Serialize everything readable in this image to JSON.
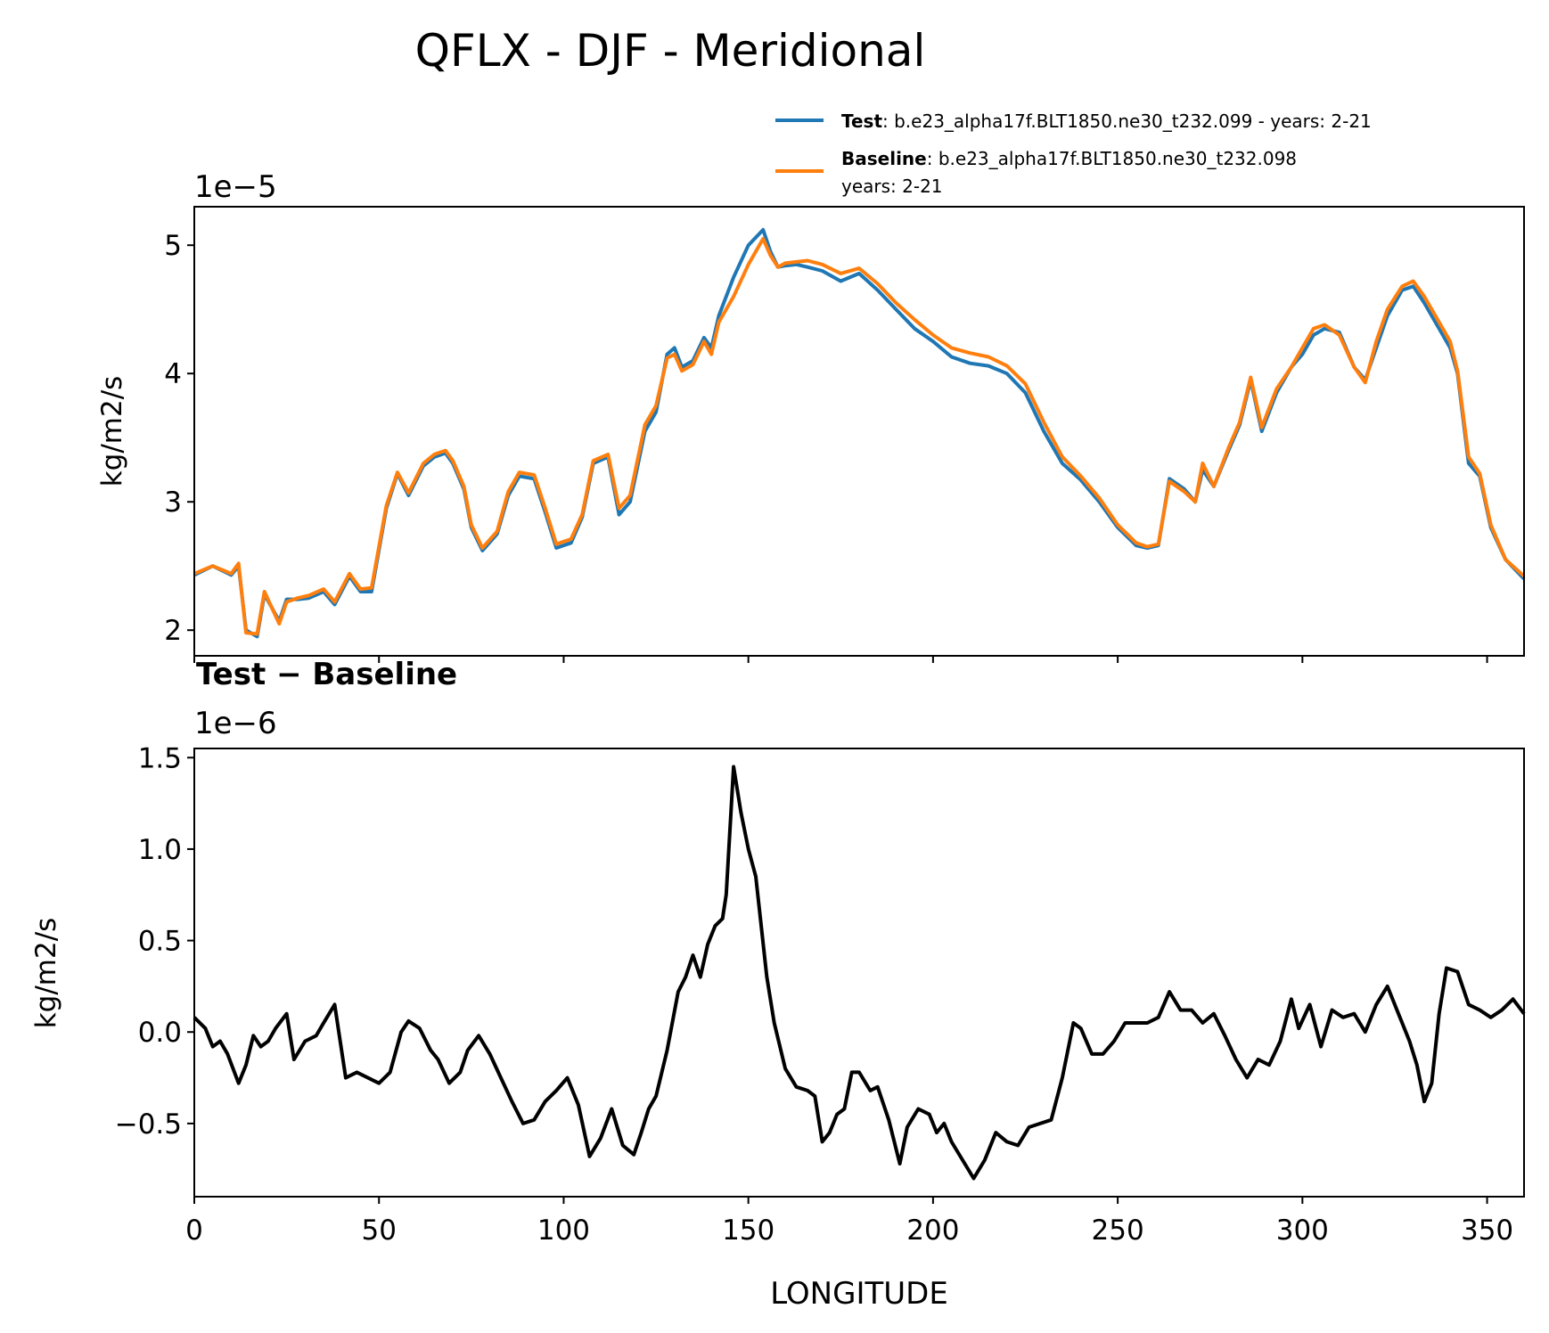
{
  "title": "QFLX - DJF - Meridional",
  "chart_data": [
    {
      "type": "line",
      "panel": "top",
      "ylabel": "kg/m2/s",
      "y_exponent": "1e−5",
      "xlim": [
        0,
        360
      ],
      "ylim": [
        1.8,
        5.3
      ],
      "yticks": [
        2,
        3,
        4,
        5
      ],
      "ytick_labels": [
        "2",
        "3",
        "4",
        "5"
      ],
      "legend": {
        "position": "top-right",
        "entries": [
          {
            "series": "Test",
            "label_bold": "Test",
            "label_rest": ": b.e23_alpha17f.BLT1850.ne30_t232.099 - years: 2-21",
            "line2": ""
          },
          {
            "series": "Baseline",
            "label_bold": "Baseline",
            "label_rest": ": b.e23_alpha17f.BLT1850.ne30_t232.098",
            "line2": "years: 2-21"
          }
        ]
      },
      "x": [
        0,
        5,
        10,
        12,
        14,
        17,
        19,
        23,
        25,
        28,
        31,
        35,
        38,
        42,
        45,
        48,
        52,
        55,
        58,
        62,
        65,
        68,
        70,
        73,
        75,
        78,
        82,
        85,
        88,
        92,
        95,
        98,
        102,
        105,
        108,
        112,
        115,
        118,
        122,
        125,
        128,
        130,
        132,
        135,
        138,
        140,
        142,
        146,
        150,
        154,
        156,
        158,
        160,
        163,
        166,
        170,
        175,
        180,
        185,
        190,
        195,
        200,
        205,
        210,
        215,
        220,
        225,
        230,
        235,
        240,
        245,
        250,
        255,
        258,
        261,
        264,
        268,
        271,
        273,
        276,
        280,
        283,
        286,
        289,
        293,
        297,
        300,
        303,
        306,
        310,
        314,
        317,
        320,
        323,
        327,
        330,
        333,
        337,
        340,
        342,
        345,
        348,
        351,
        355,
        360
      ],
      "series": [
        {
          "name": "Test",
          "color": "#1f77b4",
          "values": [
            2.43,
            2.5,
            2.43,
            2.5,
            2.0,
            1.95,
            2.28,
            2.07,
            2.24,
            2.24,
            2.25,
            2.3,
            2.2,
            2.42,
            2.3,
            2.3,
            2.95,
            3.22,
            3.05,
            3.28,
            3.35,
            3.38,
            3.3,
            3.1,
            2.8,
            2.62,
            2.75,
            3.05,
            3.2,
            3.18,
            2.92,
            2.64,
            2.68,
            2.88,
            3.3,
            3.35,
            2.9,
            3.0,
            3.55,
            3.7,
            4.15,
            4.2,
            4.05,
            4.1,
            4.28,
            4.2,
            4.45,
            4.75,
            5.0,
            5.12,
            4.95,
            4.83,
            4.84,
            4.85,
            4.83,
            4.8,
            4.72,
            4.78,
            4.65,
            4.5,
            4.35,
            4.25,
            4.13,
            4.08,
            4.06,
            4.0,
            3.85,
            3.55,
            3.3,
            3.17,
            3.0,
            2.8,
            2.66,
            2.64,
            2.66,
            3.18,
            3.1,
            3.0,
            3.25,
            3.12,
            3.4,
            3.6,
            3.95,
            3.55,
            3.85,
            4.05,
            4.15,
            4.3,
            4.35,
            4.32,
            4.05,
            3.95,
            4.2,
            4.45,
            4.65,
            4.68,
            4.55,
            4.35,
            4.2,
            4.0,
            3.3,
            3.2,
            2.8,
            2.55,
            2.4
          ]
        },
        {
          "name": "Baseline",
          "color": "#ff7f0e",
          "values": [
            2.44,
            2.5,
            2.44,
            2.52,
            1.98,
            1.97,
            2.3,
            2.05,
            2.22,
            2.25,
            2.27,
            2.32,
            2.22,
            2.44,
            2.32,
            2.33,
            2.97,
            3.23,
            3.07,
            3.3,
            3.37,
            3.4,
            3.32,
            3.12,
            2.82,
            2.64,
            2.77,
            3.08,
            3.23,
            3.21,
            2.95,
            2.67,
            2.71,
            2.9,
            3.32,
            3.37,
            2.95,
            3.05,
            3.6,
            3.75,
            4.12,
            4.15,
            4.02,
            4.07,
            4.25,
            4.15,
            4.4,
            4.6,
            4.85,
            5.05,
            4.92,
            4.83,
            4.86,
            4.87,
            4.88,
            4.85,
            4.78,
            4.82,
            4.7,
            4.55,
            4.42,
            4.3,
            4.2,
            4.16,
            4.13,
            4.06,
            3.92,
            3.62,
            3.35,
            3.2,
            3.03,
            2.82,
            2.68,
            2.65,
            2.67,
            3.16,
            3.08,
            3.0,
            3.3,
            3.12,
            3.42,
            3.62,
            3.97,
            3.58,
            3.88,
            4.05,
            4.2,
            4.35,
            4.38,
            4.3,
            4.05,
            3.93,
            4.25,
            4.5,
            4.68,
            4.72,
            4.6,
            4.4,
            4.25,
            4.02,
            3.35,
            3.22,
            2.82,
            2.55,
            2.42
          ]
        }
      ]
    },
    {
      "type": "line",
      "panel": "bottom",
      "title": "Test − Baseline",
      "ylabel": "kg/m2/s",
      "xlabel": "LONGITUDE",
      "y_exponent": "1e−6",
      "xlim": [
        0,
        360
      ],
      "ylim": [
        -0.9,
        1.55
      ],
      "xticks": [
        0,
        50,
        100,
        150,
        200,
        250,
        300,
        350
      ],
      "xtick_labels": [
        "0",
        "50",
        "100",
        "150",
        "200",
        "250",
        "300",
        "350"
      ],
      "yticks": [
        -0.5,
        0.0,
        0.5,
        1.0,
        1.5
      ],
      "ytick_labels": [
        "−0.5",
        "0.0",
        "0.5",
        "1.0",
        "1.5"
      ],
      "x": [
        0,
        3,
        5,
        7,
        9,
        12,
        14,
        16,
        18,
        20,
        22,
        25,
        27,
        30,
        33,
        35,
        38,
        41,
        44,
        47,
        50,
        53,
        56,
        58,
        61,
        64,
        66,
        69,
        72,
        74,
        77,
        80,
        83,
        86,
        89,
        92,
        95,
        98,
        101,
        104,
        107,
        110,
        113,
        116,
        119,
        121,
        123,
        125,
        128,
        131,
        133,
        135,
        137,
        139,
        141,
        143,
        144,
        146,
        148,
        150,
        152,
        155,
        157,
        160,
        163,
        166,
        168,
        170,
        172,
        174,
        176,
        178,
        180,
        183,
        185,
        188,
        191,
        193,
        196,
        199,
        201,
        203,
        205,
        208,
        211,
        214,
        217,
        220,
        223,
        226,
        229,
        232,
        235,
        238,
        240,
        243,
        246,
        249,
        252,
        255,
        258,
        261,
        264,
        267,
        270,
        273,
        276,
        279,
        282,
        285,
        288,
        291,
        294,
        297,
        299,
        302,
        305,
        308,
        311,
        314,
        317,
        320,
        323,
        326,
        329,
        331,
        333,
        335,
        337,
        339,
        342,
        345,
        348,
        351,
        354,
        357,
        360
      ],
      "series": [
        {
          "name": "Test − Baseline",
          "color": "#000000",
          "values": [
            0.08,
            0.02,
            -0.08,
            -0.05,
            -0.12,
            -0.28,
            -0.18,
            -0.02,
            -0.08,
            -0.05,
            0.02,
            0.1,
            -0.15,
            -0.05,
            -0.02,
            0.05,
            0.15,
            -0.25,
            -0.22,
            -0.25,
            -0.28,
            -0.22,
            0.0,
            0.06,
            0.02,
            -0.1,
            -0.15,
            -0.28,
            -0.22,
            -0.1,
            -0.02,
            -0.12,
            -0.25,
            -0.38,
            -0.5,
            -0.48,
            -0.38,
            -0.32,
            -0.25,
            -0.4,
            -0.68,
            -0.58,
            -0.42,
            -0.62,
            -0.67,
            -0.55,
            -0.42,
            -0.35,
            -0.1,
            0.22,
            0.3,
            0.42,
            0.3,
            0.48,
            0.58,
            0.62,
            0.75,
            1.45,
            1.2,
            1.0,
            0.85,
            0.3,
            0.05,
            -0.2,
            -0.3,
            -0.32,
            -0.35,
            -0.6,
            -0.55,
            -0.45,
            -0.42,
            -0.22,
            -0.22,
            -0.32,
            -0.3,
            -0.48,
            -0.72,
            -0.52,
            -0.42,
            -0.45,
            -0.55,
            -0.5,
            -0.6,
            -0.7,
            -0.8,
            -0.7,
            -0.55,
            -0.6,
            -0.62,
            -0.52,
            -0.5,
            -0.48,
            -0.25,
            0.05,
            0.02,
            -0.12,
            -0.12,
            -0.05,
            0.05,
            0.05,
            0.05,
            0.08,
            0.22,
            0.12,
            0.12,
            0.05,
            0.1,
            -0.02,
            -0.15,
            -0.25,
            -0.15,
            -0.18,
            -0.05,
            0.18,
            0.02,
            0.15,
            -0.08,
            0.12,
            0.08,
            0.1,
            0.0,
            0.15,
            0.25,
            0.1,
            -0.05,
            -0.18,
            -0.38,
            -0.28,
            0.1,
            0.35,
            0.33,
            0.15,
            0.12,
            0.08,
            0.12,
            0.18,
            0.1
          ]
        }
      ]
    }
  ]
}
